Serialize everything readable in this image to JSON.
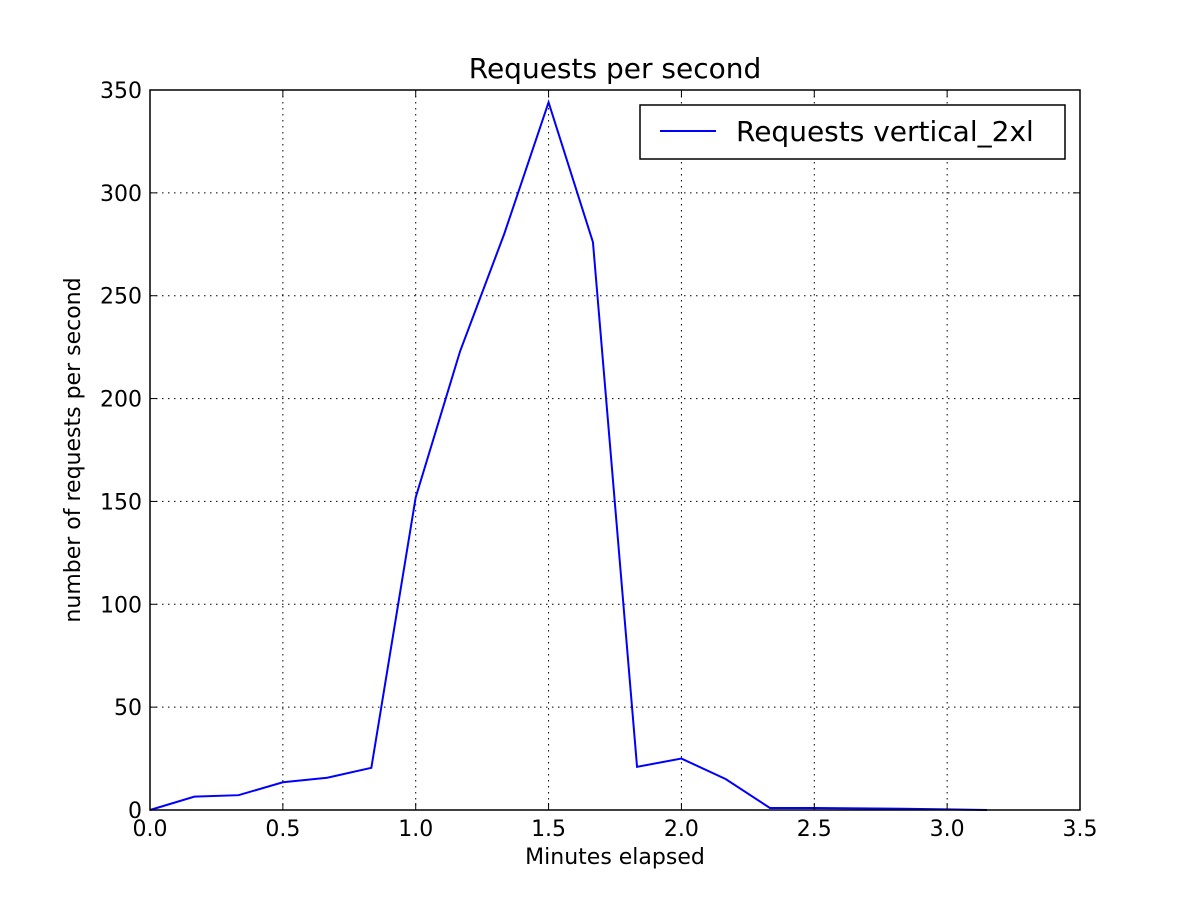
{
  "chart_data": {
    "type": "line",
    "title": "Requests per second",
    "xlabel": "Minutes elapsed",
    "ylabel": "number of requests per second",
    "xlim": [
      0.0,
      3.5
    ],
    "ylim": [
      0,
      350
    ],
    "x_ticks": [
      "0.0",
      "0.5",
      "1.0",
      "1.5",
      "2.0",
      "2.5",
      "3.0",
      "3.5"
    ],
    "y_ticks": [
      "0",
      "50",
      "100",
      "150",
      "200",
      "250",
      "300",
      "350"
    ],
    "grid": true,
    "legend_position": "top-right",
    "series": [
      {
        "name": "Requests vertical_2xl",
        "color": "#0000ff",
        "x": [
          0.0,
          0.167,
          0.333,
          0.5,
          0.667,
          0.833,
          1.0,
          1.167,
          1.333,
          1.5,
          1.667,
          1.833,
          2.0,
          2.167,
          2.333,
          2.5,
          2.667,
          2.833,
          3.0,
          3.15
        ],
        "values": [
          0,
          6.5,
          7.2,
          13.5,
          15.7,
          20.5,
          152,
          223,
          280,
          344,
          276,
          21,
          25,
          15,
          1,
          1,
          0.8,
          0.6,
          0.3,
          0
        ]
      }
    ]
  }
}
